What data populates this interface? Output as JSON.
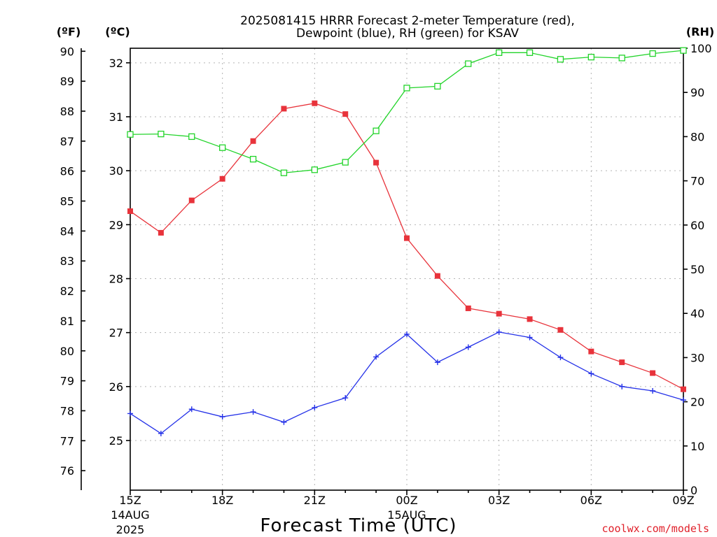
{
  "chart_data": {
    "type": "line",
    "title_lines": [
      "2025081415 HRRR Forecast 2-meter Temperature (red),",
      "Dewpoint (blue), RH (green) for KSAV"
    ],
    "xlabel": "Forecast Time (UTC)",
    "credit": "coolwx.com/models",
    "x_hours": [
      0,
      1,
      2,
      3,
      4,
      5,
      6,
      7,
      8,
      9,
      10,
      11,
      12,
      13,
      14,
      15,
      16,
      17,
      18
    ],
    "x_ticks": [
      {
        "h": 0,
        "label": "15Z",
        "date": "14AUG",
        "year": "2025"
      },
      {
        "h": 3,
        "label": "18Z"
      },
      {
        "h": 6,
        "label": "21Z"
      },
      {
        "h": 9,
        "label": "00Z",
        "date": "15AUG"
      },
      {
        "h": 12,
        "label": "03Z"
      },
      {
        "h": 15,
        "label": "06Z"
      },
      {
        "h": 18,
        "label": "09Z"
      }
    ],
    "axes": {
      "fahrenheit": {
        "unit_label": "(ºF)",
        "range": [
          75.35,
          90.1
        ],
        "ticks": [
          76,
          77,
          78,
          79,
          80,
          81,
          82,
          83,
          84,
          85,
          86,
          87,
          88,
          89,
          90
        ]
      },
      "celsius": {
        "unit_label": "(ºC)",
        "range": [
          24.08,
          32.27
        ],
        "ticks": [
          25,
          26,
          27,
          28,
          29,
          30,
          31,
          32
        ]
      },
      "rh": {
        "unit_label": "(RH)",
        "range": [
          0,
          100
        ],
        "ticks": [
          0,
          10,
          20,
          30,
          40,
          50,
          60,
          70,
          80,
          90,
          100
        ]
      }
    },
    "grid": true,
    "series": [
      {
        "name": "Temperature",
        "axis": "celsius",
        "color": "#e8333b",
        "marker": "filled-square",
        "values": [
          29.25,
          28.85,
          29.45,
          29.85,
          30.55,
          31.15,
          31.25,
          31.05,
          30.15,
          28.75,
          28.05,
          27.45,
          27.35,
          27.25,
          27.05,
          26.65,
          26.45,
          26.25,
          25.95
        ]
      },
      {
        "name": "Dewpoint",
        "axis": "celsius",
        "color": "#2431e8",
        "marker": "plus",
        "values": [
          25.5,
          25.13,
          25.58,
          25.44,
          25.53,
          25.34,
          25.61,
          25.79,
          26.55,
          26.97,
          26.45,
          26.73,
          27.01,
          26.91,
          26.54,
          26.24,
          26.0,
          25.92,
          25.75
        ]
      },
      {
        "name": "RH",
        "axis": "rh",
        "color": "#22d42a",
        "marker": "open-square",
        "values": [
          80.5,
          80.6,
          80.0,
          77.5,
          74.9,
          71.8,
          72.5,
          74.2,
          81.3,
          91.0,
          91.4,
          96.5,
          99.0,
          99.0,
          97.5,
          98.0,
          97.8,
          98.8,
          99.5
        ]
      }
    ]
  }
}
